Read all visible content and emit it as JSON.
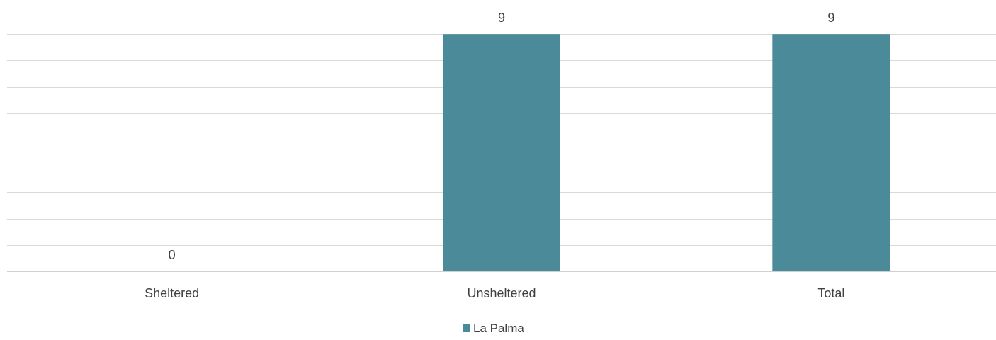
{
  "chart_data": {
    "type": "bar",
    "categories": [
      "Sheltered",
      "Unsheltered",
      "Total"
    ],
    "series": [
      {
        "name": "La Palma",
        "values": [
          0,
          9,
          9
        ],
        "color": "#4a8a99"
      }
    ],
    "ylim": [
      0,
      10
    ],
    "y_gridline_step": 1,
    "grid": true,
    "legend": "bottom-center",
    "data_labels": true,
    "title": "",
    "xlabel": "",
    "ylabel": ""
  }
}
